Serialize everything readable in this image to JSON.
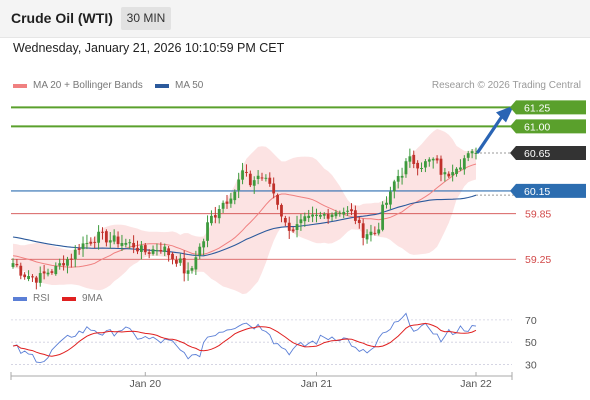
{
  "header": {
    "instrument": "Crude Oil (WTI)",
    "timeframe": "30 MIN"
  },
  "datetime": "Wednesday, January 21, 2026 10:10:59 PM CET",
  "legend": {
    "bb_label": "MA 20 + Bollinger Bands",
    "ma50_label": "MA 50",
    "bb_color": "#f08080",
    "ma50_color": "#2c5a9c"
  },
  "credit": "Research © 2026 Trading Central",
  "indicator_legend": {
    "rsi_label": "RSI",
    "ma9_label": "9MA",
    "rsi_color": "#5b7fd6",
    "ma9_color": "#e02020"
  },
  "chart_data": [
    {
      "type": "candlestick",
      "title": "Crude Oil (WTI)",
      "timeframe": "30 MIN",
      "ylim": [
        58.95,
        61.4
      ],
      "x_tick_labels": [
        "Jan 20",
        "Jan 21",
        "Jan 22"
      ],
      "price_levels": [
        {
          "label": "61.25",
          "value": 61.25,
          "kind": "resistance",
          "color": "#5aa02c"
        },
        {
          "label": "61.00",
          "value": 61.0,
          "kind": "resistance",
          "color": "#5aa02c"
        },
        {
          "label": "60.65",
          "value": 60.65,
          "kind": "last",
          "color": "#333333"
        },
        {
          "label": "60.15",
          "value": 60.15,
          "kind": "pivot",
          "color": "#2c6db0"
        },
        {
          "label": "59.85",
          "value": 59.85,
          "kind": "support",
          "color": "#d24a4a"
        },
        {
          "label": "59.25",
          "value": 59.25,
          "kind": "support",
          "color": "#d24a4a"
        }
      ],
      "anchors": [
        [
          0,
          59.2
        ],
        [
          3,
          59.05
        ],
        [
          6,
          59.0
        ],
        [
          10,
          59.1
        ],
        [
          14,
          59.25
        ],
        [
          18,
          59.45
        ],
        [
          22,
          59.55
        ],
        [
          26,
          59.5
        ],
        [
          30,
          59.45
        ],
        [
          34,
          59.35
        ],
        [
          38,
          59.4
        ],
        [
          42,
          59.25
        ],
        [
          45,
          59.05
        ],
        [
          48,
          59.4
        ],
        [
          51,
          59.8
        ],
        [
          54,
          60.0
        ],
        [
          57,
          60.15
        ],
        [
          59,
          60.4
        ],
        [
          61,
          60.25
        ],
        [
          63,
          60.35
        ],
        [
          66,
          60.25
        ],
        [
          68,
          60.0
        ],
        [
          70,
          59.7
        ],
        [
          72,
          59.65
        ],
        [
          75,
          59.75
        ],
        [
          78,
          59.8
        ],
        [
          81,
          59.85
        ],
        [
          84,
          59.9
        ],
        [
          87,
          59.85
        ],
        [
          90,
          59.6
        ],
        [
          93,
          59.6
        ],
        [
          96,
          60.0
        ],
        [
          99,
          60.35
        ],
        [
          102,
          60.55
        ],
        [
          105,
          60.5
        ],
        [
          108,
          60.55
        ],
        [
          111,
          60.35
        ],
        [
          114,
          60.5
        ],
        [
          117,
          60.6
        ],
        [
          119,
          60.65
        ]
      ],
      "ma20_start": 59.3,
      "ma50_start": 59.55,
      "ma50_end": 60.1
    },
    {
      "type": "line",
      "title": "RSI",
      "yticks": [
        70,
        50,
        30
      ],
      "ylim": [
        25,
        78
      ],
      "rsi_anchors": [
        [
          0,
          45
        ],
        [
          4,
          38
        ],
        [
          8,
          34
        ],
        [
          12,
          48
        ],
        [
          16,
          58
        ],
        [
          20,
          62
        ],
        [
          24,
          57
        ],
        [
          28,
          62
        ],
        [
          32,
          55
        ],
        [
          36,
          52
        ],
        [
          40,
          50
        ],
        [
          44,
          40
        ],
        [
          47,
          35
        ],
        [
          50,
          55
        ],
        [
          53,
          60
        ],
        [
          56,
          64
        ],
        [
          59,
          68
        ],
        [
          62,
          65
        ],
        [
          65,
          63
        ],
        [
          68,
          48
        ],
        [
          71,
          42
        ],
        [
          74,
          46
        ],
        [
          77,
          50
        ],
        [
          80,
          54
        ],
        [
          83,
          55
        ],
        [
          86,
          52
        ],
        [
          89,
          40
        ],
        [
          92,
          42
        ],
        [
          95,
          55
        ],
        [
          98,
          65
        ],
        [
          101,
          72
        ],
        [
          104,
          60
        ],
        [
          107,
          64
        ],
        [
          110,
          52
        ],
        [
          113,
          60
        ],
        [
          116,
          63
        ],
        [
          119,
          62
        ]
      ]
    }
  ]
}
